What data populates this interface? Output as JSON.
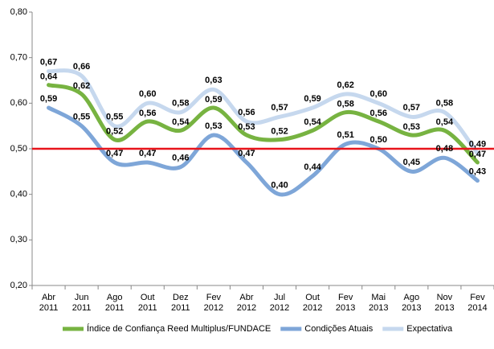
{
  "chart_data": {
    "type": "line",
    "categories": [
      "Abr 2011",
      "Jun 2011",
      "Ago 2011",
      "Out 2011",
      "Dez 2011",
      "Fev 2012",
      "Abr 2012",
      "Jul 2012",
      "Out 2012",
      "Fev 2013",
      "Mai 2013",
      "Ago 2013",
      "Nov 2013",
      "Fev 2014"
    ],
    "series": [
      {
        "name": "Índice de Confiança Reed Multiplus/FUNDACE",
        "color": "#77b341",
        "values": [
          0.64,
          0.62,
          0.52,
          0.56,
          0.54,
          0.59,
          0.53,
          0.52,
          0.54,
          0.58,
          0.56,
          0.53,
          0.54,
          0.47
        ],
        "value_labels": [
          "0,64",
          "0,62",
          "0,52",
          "0,56",
          "0,54",
          "0,59",
          "0,53",
          "0,52",
          "0,54",
          "0,58",
          "0,56",
          "0,53",
          "0,54",
          "0,47"
        ]
      },
      {
        "name": "Condições Atuais",
        "color": "#7ea6d8",
        "values": [
          0.59,
          0.55,
          0.47,
          0.47,
          0.46,
          0.53,
          0.47,
          0.4,
          0.44,
          0.51,
          0.5,
          0.45,
          0.48,
          0.43
        ],
        "value_labels": [
          "0,59",
          "0,55",
          "0,47",
          "0,47",
          "0,46",
          "0,53",
          "0,47",
          "0,40",
          "0,44",
          "0,51",
          "0,50",
          "0,45",
          "0,48",
          "0,43"
        ]
      },
      {
        "name": "Expectativa",
        "color": "#c6d8ee",
        "values": [
          0.67,
          0.66,
          0.55,
          0.6,
          0.58,
          0.63,
          0.56,
          0.57,
          0.59,
          0.62,
          0.6,
          0.57,
          0.58,
          0.49
        ],
        "value_labels": [
          "0,67",
          "0,66",
          "0,55",
          "0,60",
          "0,58",
          "0,63",
          "0,56",
          "0,57",
          "0,59",
          "0,62",
          "0,60",
          "0,57",
          "0,58",
          "0,49"
        ]
      }
    ],
    "ylim": [
      0.2,
      0.8
    ],
    "yticks": [
      {
        "value": 0.2,
        "label": "0,20"
      },
      {
        "value": 0.3,
        "label": "0,30"
      },
      {
        "value": 0.4,
        "label": "0,40"
      },
      {
        "value": 0.5,
        "label": "0,50"
      },
      {
        "value": 0.6,
        "label": "0,60"
      },
      {
        "value": 0.7,
        "label": "0,70"
      },
      {
        "value": 0.8,
        "label": "0,80"
      }
    ],
    "reference_line": {
      "value": 0.5,
      "color": "#e8141b"
    },
    "smooth": true,
    "legend": "bottom"
  }
}
